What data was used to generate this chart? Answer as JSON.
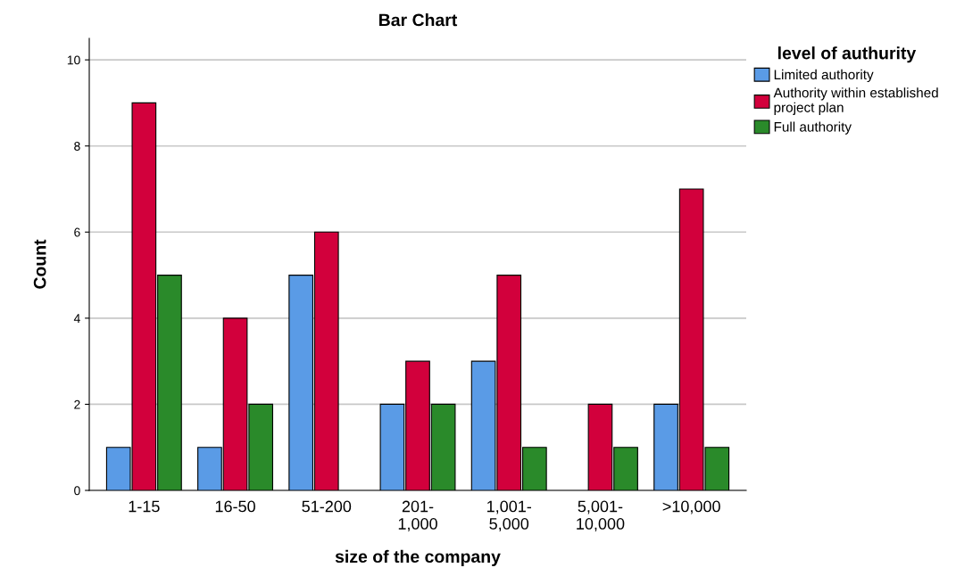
{
  "chart_data": {
    "type": "bar",
    "title": "Bar Chart",
    "xlabel": "size of the company",
    "ylabel": "Count",
    "legend_title": "level of authurity",
    "categories": [
      "1-15",
      "16-50",
      "51-200",
      "201-\n1,000",
      "1,001-\n5,000",
      "5,001-\n10,000",
      ">10,000"
    ],
    "series": [
      {
        "name": "Limited authority",
        "color": "#5a9be6",
        "values": [
          1,
          1,
          5,
          2,
          3,
          null,
          2
        ]
      },
      {
        "name": "Authority within established\nproject plan",
        "color": "#d2003c",
        "values": [
          9,
          4,
          6,
          3,
          5,
          2,
          7
        ]
      },
      {
        "name": "Full authority",
        "color": "#2a8a2a",
        "values": [
          5,
          2,
          null,
          2,
          1,
          1,
          1
        ]
      }
    ],
    "ylim": [
      0,
      10.5
    ],
    "yticks": [
      0,
      2,
      4,
      6,
      8,
      10
    ],
    "grid": "y",
    "legend": "top right"
  }
}
